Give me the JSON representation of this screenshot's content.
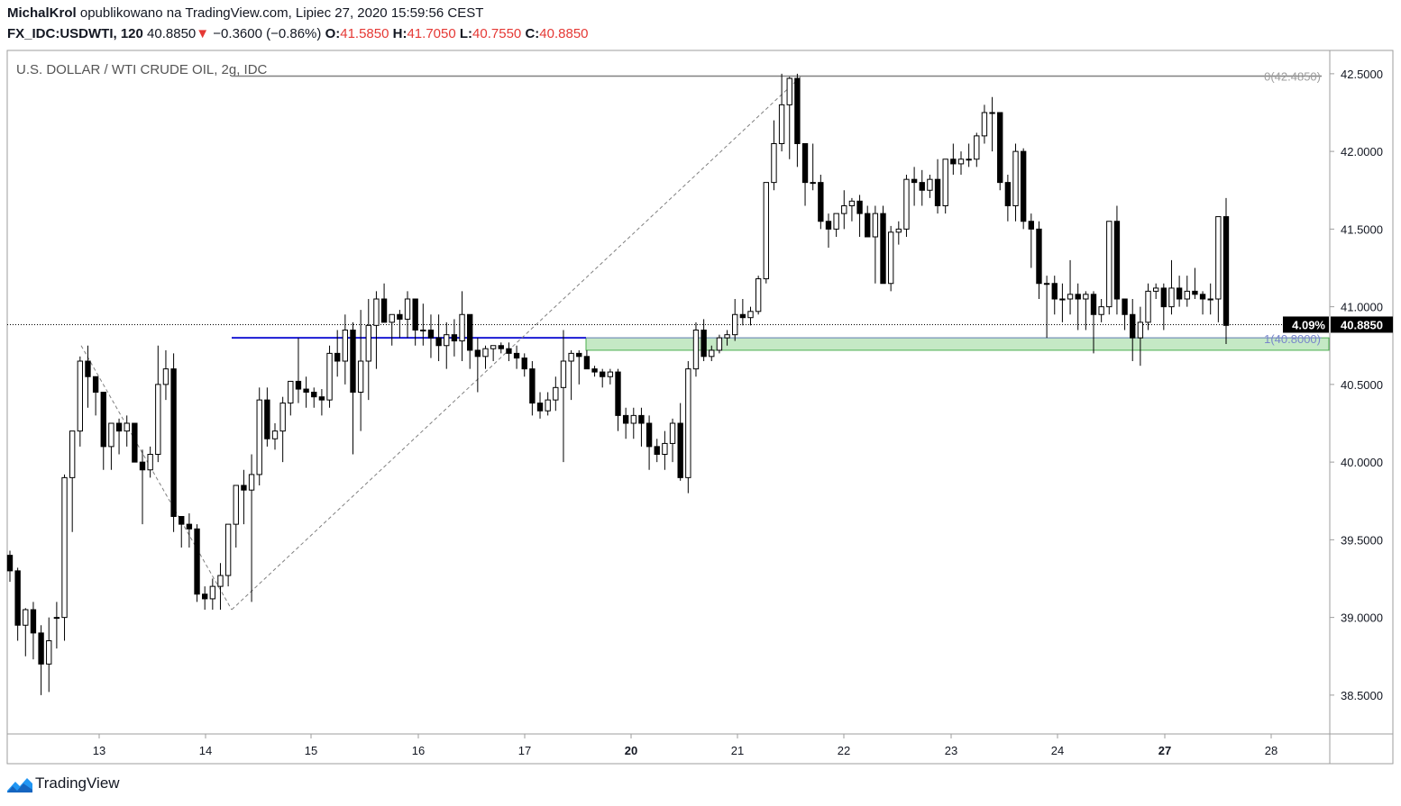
{
  "header": {
    "author": "MichalKrol",
    "published": "opublikowano na TradingView.com, Lipiec 27, 2020 15:59:56 CEST",
    "symbol": "FX_IDC:USDWTI, 120",
    "last": "40.8850",
    "change_arrow": "▼",
    "change": "−0.3600 (−0.86%)",
    "o_label": "O:",
    "o_value": "41.5850",
    "h_label": "H:",
    "h_value": "41.7050",
    "l_label": "L:",
    "l_value": "40.7550",
    "c_label": "C:",
    "c_value": "40.8850"
  },
  "footer": {
    "brand": "TradingView"
  },
  "colors": {
    "up_body": "#ffffff",
    "down_body": "#000000",
    "wick": "#000000",
    "support_line": "#1a1ad4",
    "zone_fill": "#b7e4b7",
    "zone_border": "#4caf50",
    "fib_line": "#808080",
    "last_price_tag": "#000000",
    "change_negative": "#e53935"
  },
  "chart_data": {
    "type": "candlestick",
    "title": "U.S. DOLLAR / WTI CRUDE OIL, 2g, IDC",
    "timeframe_minutes": 120,
    "ylim": [
      38.25,
      42.65
    ],
    "y_ticks": [
      "42.5000",
      "42.0000",
      "41.5000",
      "41.0000",
      "40.5000",
      "40.0000",
      "39.5000",
      "39.0000",
      "38.5000"
    ],
    "x_ticks": [
      "13",
      "14",
      "15",
      "16",
      "17",
      "20",
      "21",
      "22",
      "23",
      "24",
      "27",
      "28"
    ],
    "bold_x_ticks": [
      "20",
      "27"
    ],
    "last_price": "40.8850",
    "last_price_percent": "4.09%",
    "fib_levels": [
      {
        "level": "0",
        "price": "42.4850",
        "label": "0(42.4850)"
      },
      {
        "level": "1",
        "price": "40.8000",
        "label": "1(40.8000)"
      }
    ],
    "support_line": {
      "price": 40.8,
      "from_day": "14",
      "to": "zone start"
    },
    "zone": {
      "from": 40.72,
      "to": 40.8,
      "from_day": "17"
    },
    "zigzag": [
      {
        "day": "12",
        "price": 40.75
      },
      {
        "day": "14",
        "price": 39.05
      },
      {
        "day": "21",
        "price": 42.48
      }
    ],
    "candles_ohlc": [
      [
        39.4,
        39.43,
        39.23,
        39.3
      ],
      [
        39.3,
        39.32,
        38.85,
        38.95
      ],
      [
        38.95,
        39.06,
        38.75,
        39.05
      ],
      [
        39.05,
        39.1,
        38.73,
        38.9
      ],
      [
        38.9,
        38.95,
        38.5,
        38.7
      ],
      [
        38.7,
        39.0,
        38.52,
        38.85
      ],
      [
        39.0,
        39.1,
        38.8,
        39.0
      ],
      [
        39.0,
        39.92,
        38.85,
        39.9
      ],
      [
        39.9,
        40.2,
        39.55,
        40.2
      ],
      [
        40.2,
        40.68,
        40.1,
        40.65
      ],
      [
        40.65,
        40.75,
        40.35,
        40.55
      ],
      [
        40.55,
        40.55,
        40.3,
        40.45
      ],
      [
        40.45,
        40.45,
        39.95,
        40.1
      ],
      [
        40.1,
        40.25,
        39.95,
        40.25
      ],
      [
        40.25,
        40.28,
        40.05,
        40.2
      ],
      [
        40.2,
        40.3,
        40.1,
        40.25
      ],
      [
        40.25,
        40.25,
        40.0,
        40.0
      ],
      [
        40.0,
        40.08,
        39.6,
        39.95
      ],
      [
        39.95,
        40.1,
        39.9,
        40.05
      ],
      [
        40.05,
        40.75,
        40.0,
        40.5
      ],
      [
        40.5,
        40.72,
        40.4,
        40.6
      ],
      [
        40.6,
        40.7,
        39.55,
        39.65
      ],
      [
        39.65,
        39.65,
        39.45,
        39.6
      ],
      [
        39.6,
        39.67,
        39.45,
        39.57
      ],
      [
        39.57,
        39.6,
        39.1,
        39.15
      ],
      [
        39.15,
        39.2,
        39.05,
        39.12
      ],
      [
        39.12,
        39.25,
        39.05,
        39.2
      ],
      [
        39.2,
        39.35,
        39.05,
        39.27
      ],
      [
        39.27,
        39.55,
        39.2,
        39.6
      ],
      [
        39.6,
        39.85,
        39.45,
        39.85
      ],
      [
        39.85,
        39.95,
        39.6,
        39.82
      ],
      [
        39.82,
        40.05,
        39.1,
        39.92
      ],
      [
        39.92,
        40.48,
        39.85,
        40.4
      ],
      [
        40.4,
        40.48,
        40.1,
        40.15
      ],
      [
        40.15,
        40.25,
        40.08,
        40.2
      ],
      [
        40.2,
        40.42,
        40.0,
        40.38
      ],
      [
        40.38,
        40.5,
        40.3,
        40.52
      ],
      [
        40.52,
        40.8,
        40.38,
        40.47
      ],
      [
        40.47,
        40.55,
        40.35,
        40.45
      ],
      [
        40.45,
        40.48,
        40.35,
        40.42
      ],
      [
        40.42,
        40.47,
        40.3,
        40.4
      ],
      [
        40.4,
        40.75,
        40.35,
        40.7
      ],
      [
        40.7,
        40.85,
        40.55,
        40.65
      ],
      [
        40.65,
        40.95,
        40.5,
        40.85
      ],
      [
        40.85,
        40.9,
        40.05,
        40.45
      ],
      [
        40.45,
        40.98,
        40.2,
        40.65
      ],
      [
        40.65,
        41.05,
        40.4,
        40.88
      ],
      [
        40.88,
        41.1,
        40.6,
        41.05
      ],
      [
        41.05,
        41.15,
        40.9,
        40.9
      ],
      [
        40.9,
        40.95,
        40.75,
        40.95
      ],
      [
        40.95,
        40.98,
        40.8,
        40.92
      ],
      [
        40.92,
        41.1,
        40.8,
        41.05
      ],
      [
        41.05,
        41.05,
        40.75,
        40.85
      ],
      [
        40.85,
        41.02,
        40.75,
        40.85
      ],
      [
        40.85,
        40.95,
        40.67,
        40.8
      ],
      [
        40.8,
        40.95,
        40.65,
        40.75
      ],
      [
        40.75,
        40.9,
        40.6,
        40.82
      ],
      [
        40.82,
        40.92,
        40.68,
        40.78
      ],
      [
        40.78,
        41.1,
        40.65,
        40.95
      ],
      [
        40.95,
        40.95,
        40.6,
        40.72
      ],
      [
        40.72,
        40.8,
        40.45,
        40.68
      ],
      [
        40.68,
        40.75,
        40.6,
        40.73
      ],
      [
        40.73,
        40.75,
        40.65,
        40.75
      ],
      [
        40.75,
        40.77,
        40.7,
        40.73
      ],
      [
        40.73,
        40.77,
        40.65,
        40.7
      ],
      [
        40.7,
        40.75,
        40.6,
        40.67
      ],
      [
        40.67,
        40.7,
        40.55,
        40.6
      ],
      [
        40.6,
        40.65,
        40.3,
        40.38
      ],
      [
        40.38,
        40.45,
        40.28,
        40.33
      ],
      [
        40.33,
        40.45,
        40.3,
        40.4
      ],
      [
        40.4,
        40.55,
        40.33,
        40.48
      ],
      [
        40.48,
        40.85,
        40.0,
        40.65
      ],
      [
        40.65,
        40.72,
        40.4,
        40.7
      ],
      [
        40.7,
        40.72,
        40.5,
        40.68
      ],
      [
        40.68,
        40.72,
        40.6,
        40.6
      ],
      [
        40.6,
        40.62,
        40.55,
        40.58
      ],
      [
        40.58,
        40.6,
        40.48,
        40.55
      ],
      [
        40.55,
        40.6,
        40.5,
        40.58
      ],
      [
        40.58,
        40.6,
        40.2,
        40.3
      ],
      [
        40.3,
        40.35,
        40.15,
        40.25
      ],
      [
        40.25,
        40.35,
        40.15,
        40.3
      ],
      [
        40.3,
        40.35,
        40.1,
        40.25
      ],
      [
        40.25,
        40.3,
        39.95,
        40.1
      ],
      [
        40.1,
        40.15,
        40.0,
        40.05
      ],
      [
        40.05,
        40.2,
        39.95,
        40.12
      ],
      [
        40.12,
        40.28,
        40.0,
        40.25
      ],
      [
        40.25,
        40.38,
        39.88,
        39.9
      ],
      [
        39.9,
        40.65,
        39.8,
        40.6
      ],
      [
        40.6,
        40.9,
        40.55,
        40.85
      ],
      [
        40.85,
        40.92,
        40.65,
        40.68
      ],
      [
        40.68,
        40.75,
        40.65,
        40.72
      ],
      [
        40.72,
        40.82,
        40.7,
        40.8
      ],
      [
        40.8,
        40.85,
        40.75,
        40.82
      ],
      [
        40.82,
        41.05,
        40.78,
        40.95
      ],
      [
        40.95,
        41.05,
        40.88,
        40.93
      ],
      [
        40.93,
        41.0,
        40.88,
        40.97
      ],
      [
        40.97,
        41.2,
        40.95,
        41.18
      ],
      [
        41.18,
        41.8,
        41.15,
        41.8
      ],
      [
        41.8,
        42.2,
        41.75,
        42.05
      ],
      [
        42.05,
        42.5,
        42.0,
        42.3
      ],
      [
        42.3,
        42.48,
        41.95,
        42.47
      ],
      [
        42.47,
        42.5,
        41.9,
        42.05
      ],
      [
        42.05,
        42.05,
        41.65,
        41.8
      ],
      [
        41.8,
        42.05,
        41.75,
        41.8
      ],
      [
        41.8,
        41.85,
        41.5,
        41.55
      ],
      [
        41.55,
        41.6,
        41.38,
        41.5
      ],
      [
        41.5,
        41.6,
        41.45,
        41.6
      ],
      [
        41.6,
        41.75,
        41.5,
        41.65
      ],
      [
        41.65,
        41.7,
        41.55,
        41.68
      ],
      [
        41.68,
        41.72,
        41.45,
        41.6
      ],
      [
        41.6,
        41.65,
        41.45,
        41.45
      ],
      [
        41.45,
        41.65,
        41.15,
        41.6
      ],
      [
        41.6,
        41.65,
        41.2,
        41.15
      ],
      [
        41.15,
        41.52,
        41.1,
        41.48
      ],
      [
        41.48,
        41.55,
        41.4,
        41.5
      ],
      [
        41.5,
        41.85,
        41.45,
        41.82
      ],
      [
        41.82,
        41.9,
        41.65,
        41.8
      ],
      [
        41.8,
        41.88,
        41.65,
        41.75
      ],
      [
        41.75,
        41.85,
        41.7,
        41.82
      ],
      [
        41.82,
        41.95,
        41.6,
        41.65
      ],
      [
        41.65,
        41.95,
        41.6,
        41.95
      ],
      [
        41.95,
        42.05,
        41.85,
        41.92
      ],
      [
        41.92,
        42.0,
        41.85,
        41.95
      ],
      [
        41.95,
        42.05,
        41.9,
        41.95
      ],
      [
        41.95,
        42.12,
        41.9,
        42.1
      ],
      [
        42.1,
        42.3,
        42.05,
        42.25
      ],
      [
        42.25,
        42.35,
        42.0,
        42.25
      ],
      [
        42.25,
        42.25,
        41.75,
        41.8
      ],
      [
        41.8,
        41.85,
        41.55,
        41.65
      ],
      [
        41.65,
        42.05,
        41.55,
        42.0
      ],
      [
        42.0,
        42.02,
        41.5,
        41.55
      ],
      [
        41.55,
        41.6,
        41.25,
        41.5
      ],
      [
        41.5,
        41.55,
        41.05,
        41.15
      ],
      [
        41.15,
        41.2,
        40.8,
        41.15
      ],
      [
        41.15,
        41.2,
        40.95,
        41.05
      ],
      [
        41.05,
        41.15,
        40.9,
        41.05
      ],
      [
        41.05,
        41.3,
        40.95,
        41.08
      ],
      [
        41.08,
        41.15,
        40.85,
        41.05
      ],
      [
        41.05,
        41.1,
        40.85,
        41.08
      ],
      [
        41.08,
        41.1,
        40.7,
        40.95
      ],
      [
        40.95,
        41.05,
        40.9,
        41.0
      ],
      [
        41.0,
        41.55,
        40.95,
        41.55
      ],
      [
        41.55,
        41.65,
        40.95,
        41.05
      ],
      [
        41.05,
        41.05,
        40.85,
        40.95
      ],
      [
        40.95,
        41.05,
        40.65,
        40.8
      ],
      [
        40.8,
        41.0,
        40.62,
        40.9
      ],
      [
        40.9,
        41.15,
        40.85,
        41.1
      ],
      [
        41.1,
        41.15,
        41.05,
        41.12
      ],
      [
        41.12,
        41.15,
        40.85,
        41.0
      ],
      [
        41.0,
        41.3,
        40.95,
        41.12
      ],
      [
        41.12,
        41.2,
        41.0,
        41.05
      ],
      [
        41.05,
        41.2,
        41.0,
        41.1
      ],
      [
        41.1,
        41.25,
        41.05,
        41.08
      ],
      [
        41.08,
        41.1,
        40.95,
        41.05
      ],
      [
        41.05,
        41.15,
        40.95,
        41.05
      ],
      [
        41.05,
        41.55,
        40.9,
        41.58
      ],
      [
        41.58,
        41.7,
        40.76,
        40.88
      ]
    ]
  }
}
